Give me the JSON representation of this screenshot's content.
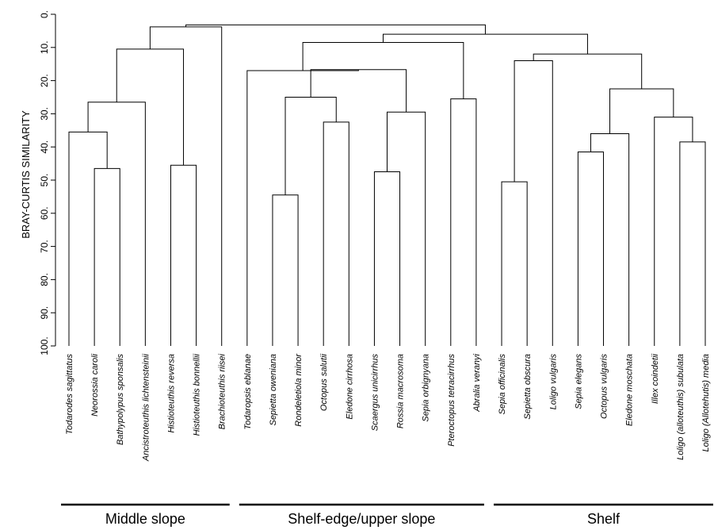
{
  "chart_data": {
    "type": "dendrogram",
    "title": "",
    "ylabel": "BRAY-CURTIS SIMILARITY",
    "ylim": [
      0,
      100
    ],
    "yaxis_inverted": true,
    "yticks": [
      "0.",
      "10.",
      "20.",
      "30.",
      "40.",
      "50.",
      "60.",
      "70.",
      "80.",
      "90.",
      "100."
    ],
    "leaves": [
      "Todarodes sagittatus",
      "Neorossia caroli",
      "Bathypolypus sponsalis",
      "Ancistroteuthis lichtensteinii",
      "Histioteuthis reversa",
      "Histioteuthis bonnellii",
      "Brachioteuthis riisei",
      "Todaropsis eblanae",
      "Sepietta oweniana",
      "Rondeletiola minor",
      "Octopus salutii",
      "Eledone cirrhosa",
      "Scaergus unicirrhus",
      "Rossia macrosoma",
      "Sepia orbignyana",
      "Pteroctopus tetracirrhus",
      "Abralia veranyi",
      "Sepia officinalis",
      "Sepietta obscura",
      "Loligo vulgaris",
      "Sepia elegans",
      "Octopus vulgaris",
      "Eledone moschata",
      "Illex coindetii",
      "Loligo (alloteuthis) subulata",
      "Loligo (Allotehutis) media"
    ],
    "merges": [
      {
        "left": 1,
        "right": 2,
        "similarity": 46.5
      },
      {
        "left": 0,
        "right": -1,
        "similarity": 35.5
      },
      {
        "left": 4,
        "right": 5,
        "similarity": 45.5
      },
      {
        "left": -2,
        "right": 3,
        "similarity": 26.5
      },
      {
        "left": -4,
        "right": -3,
        "similarity": 10.5
      },
      {
        "left": -5,
        "right": 6,
        "similarity": 3.8
      },
      {
        "left": 8,
        "right": 9,
        "similarity": 54.5
      },
      {
        "left": 10,
        "right": 11,
        "similarity": 32.5
      },
      {
        "left": -7,
        "right": -8,
        "similarity": 25.0
      },
      {
        "left": 12,
        "right": 13,
        "similarity": 47.5
      },
      {
        "left": -10,
        "right": 14,
        "similarity": 29.5
      },
      {
        "left": -9,
        "right": -11,
        "similarity": 16.7
      },
      {
        "left": 7,
        "right": -12,
        "similarity": 17.0
      },
      {
        "left": 15,
        "right": 16,
        "similarity": 25.5
      },
      {
        "left": -13,
        "right": -14,
        "similarity": 8.5
      },
      {
        "left": 17,
        "right": 18,
        "similarity": 50.5
      },
      {
        "left": -16,
        "right": 19,
        "similarity": 14.0
      },
      {
        "left": 20,
        "right": 21,
        "similarity": 41.5
      },
      {
        "left": -18,
        "right": 22,
        "similarity": 36.0
      },
      {
        "left": 24,
        "right": 25,
        "similarity": 38.5
      },
      {
        "left": 23,
        "right": -20,
        "similarity": 31.0
      },
      {
        "left": -19,
        "right": -21,
        "similarity": 22.5
      },
      {
        "left": -17,
        "right": -22,
        "similarity": 12.0
      },
      {
        "left": -15,
        "right": -23,
        "similarity": 6.0
      },
      {
        "left": -6,
        "right": -24,
        "similarity": 3.2
      }
    ],
    "groups": [
      {
        "label": "Middle slope",
        "from": 0,
        "to": 6
      },
      {
        "label": "Shelf-edge/upper slope",
        "from": 7,
        "to": 16
      },
      {
        "label": "Shelf",
        "from": 17,
        "to": 25
      }
    ]
  }
}
